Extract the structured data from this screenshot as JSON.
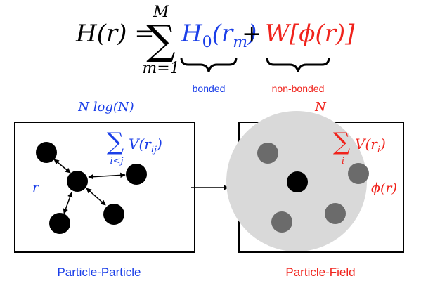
{
  "colors": {
    "bonded": "#1a3ee8",
    "non_bonded": "#f0231c",
    "black": "#000000",
    "field_circle": "#d9d9d9",
    "grey_particle": "#6b6b6b"
  },
  "equation": {
    "lhs": "H(r) =",
    "sum_symbol": "∑",
    "sum_upper": "M",
    "sum_lower": "m=1",
    "bonded_term_base": "H",
    "bonded_term_sub": "0",
    "bonded_term_arg": "(r",
    "bonded_term_arg_sub": "m",
    "bonded_term_close": ")",
    "plus": "+",
    "nonbonded_term": "W[ϕ(r)]",
    "bonded_label": "bonded",
    "nonbonded_label": "non-bonded"
  },
  "particle_particle": {
    "complexity": "N log(N)",
    "sum_symbol": "∑",
    "sum_index": "i<j",
    "potential": "V(r",
    "potential_sub": "ij",
    "potential_close": ")",
    "distance_label": "r",
    "caption": "Particle-Particle"
  },
  "particle_field": {
    "complexity": "N",
    "sum_symbol": "∑",
    "sum_index": "i",
    "potential": "V(r",
    "potential_sub": "i",
    "potential_close": ")",
    "field_label": "ϕ(r)",
    "caption": "Particle-Field"
  }
}
